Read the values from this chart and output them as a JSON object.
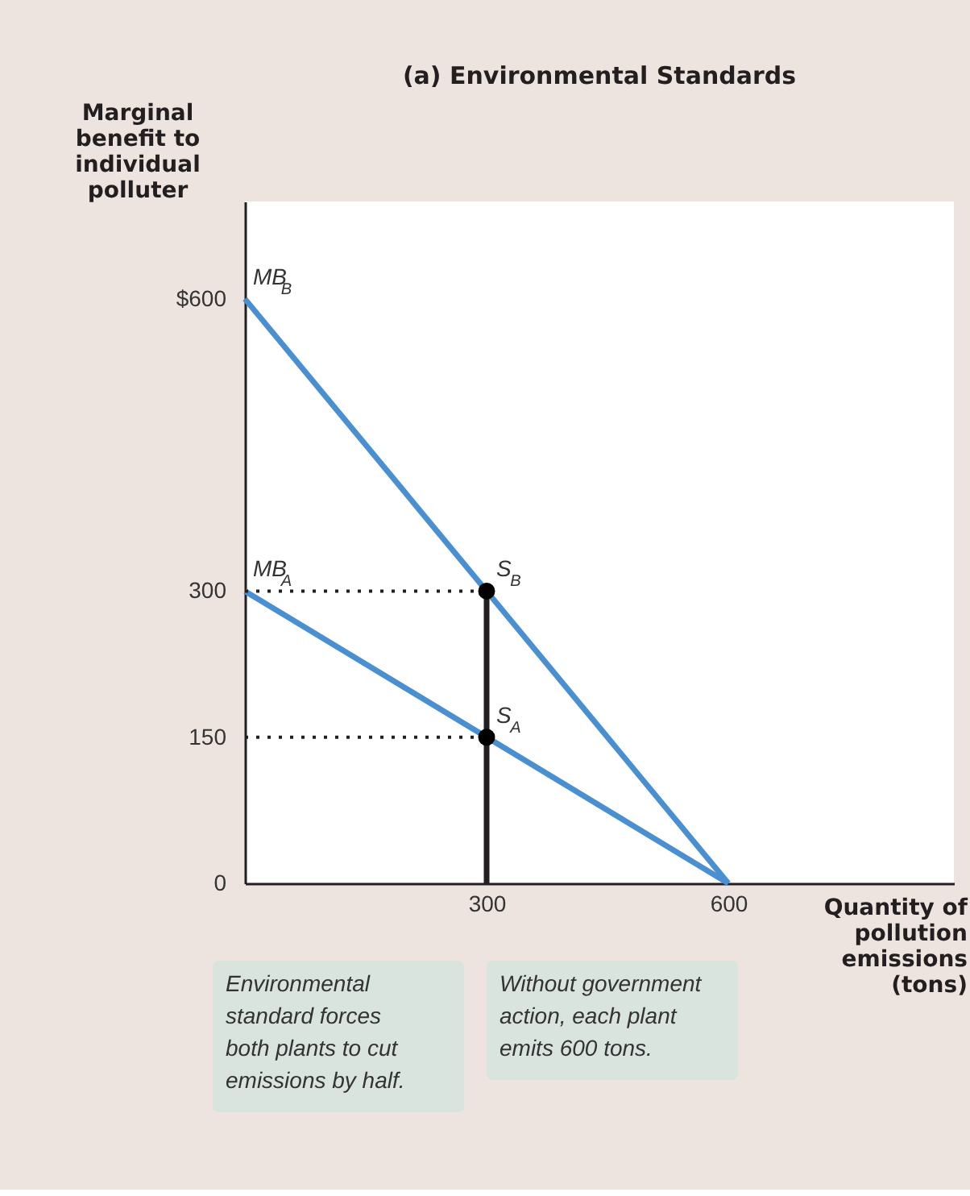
{
  "chart_data": {
    "type": "line",
    "title": "(a) Environmental Standards",
    "ylabel": "Marginal benefit to individual polluter",
    "xlabel": "Quantity of pollution emissions (tons)",
    "xlim": [
      0,
      880
    ],
    "ylim": [
      0,
      700
    ],
    "xticks": [
      300,
      600
    ],
    "yticks": [
      0,
      150,
      300,
      {
        "value": 600,
        "label": "$600"
      }
    ],
    "grid": false,
    "series": [
      {
        "name": "MB$_{B}$",
        "color": "#4a90d0",
        "line_style": "solid",
        "x": [
          0,
          600
        ],
        "values": [
          600,
          0
        ]
      },
      {
        "name": "MB$_{A}$",
        "color": "#4a90d0",
        "line_style": "solid",
        "x": [
          0,
          600
        ],
        "values": [
          300,
          0
        ]
      },
      {
        "color": "#231f20",
        "line_style": "solid",
        "x": [
          300,
          300
        ],
        "values": [
          0,
          300
        ]
      },
      {
        "color": "#231f20",
        "line_style": "dotted",
        "x": [
          0,
          300
        ],
        "values": [
          300,
          300
        ]
      },
      {
        "color": "#231f20",
        "line_style": "dotted",
        "x": [
          0,
          300
        ],
        "values": [
          150,
          150
        ]
      },
      {
        "type": "scatter",
        "color": "#000000",
        "marker": "circle",
        "x": [
          300,
          300
        ],
        "values": [
          300,
          150
        ]
      }
    ],
    "annotations": [
      {
        "text": "S$_{B}$",
        "x": 300,
        "y": 300
      },
      {
        "text": "S$_{A}$",
        "x": 300,
        "y": 150
      },
      "Environmental standard forces both plants to cut emissions by half.",
      "Without government action, each plant emits 600 tons."
    ]
  }
}
